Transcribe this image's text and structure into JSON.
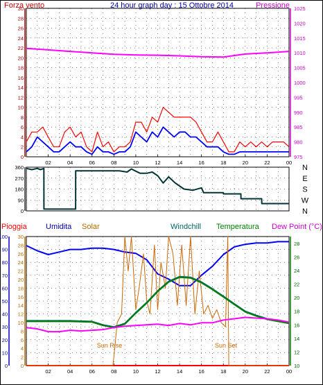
{
  "chart_data": [
    {
      "type": "line",
      "title": "24 hour graph day : 15 Ottobre 2014",
      "left_axis_label": "Forza vento",
      "right_axis_label": "Pressione",
      "x_ticks": [
        "02",
        "04",
        "06",
        "08",
        "10",
        "12",
        "14",
        "16",
        "18",
        "20",
        "22",
        "00"
      ],
      "x_range_hours": [
        0,
        24
      ],
      "left_ylim": [
        0,
        30
      ],
      "left_ticks": [
        0,
        2,
        4,
        6,
        8,
        10,
        12,
        14,
        16,
        18,
        20,
        22,
        24,
        26,
        28,
        30
      ],
      "right_ylim": [
        975,
        1025
      ],
      "right_ticks": [
        975,
        980,
        985,
        990,
        995,
        1000,
        1005,
        1010,
        1015,
        1020,
        1025
      ],
      "grid": true,
      "series": [
        {
          "color": "#ff0000",
          "axis": "left",
          "style": "gust",
          "x": [
            0,
            0.5,
            1,
            1.5,
            2,
            2.5,
            3,
            3.5,
            4,
            4.5,
            5,
            5.5,
            6,
            6.5,
            7,
            7.5,
            8,
            8.5,
            9,
            9.5,
            10,
            10.5,
            11,
            11.5,
            12,
            12.5,
            13,
            13.5,
            14,
            14.5,
            15,
            15.5,
            16,
            16.5,
            17,
            17.5,
            18,
            18.5,
            19,
            19.5,
            20,
            20.5,
            21,
            21.5,
            22,
            22.5,
            23,
            23.5,
            24
          ],
          "y": [
            3,
            5,
            5,
            6,
            4,
            2,
            2,
            5,
            6,
            4,
            5,
            2,
            1,
            5,
            2,
            3,
            1,
            2,
            2,
            3,
            7,
            7,
            5,
            8,
            7,
            10,
            9,
            8,
            8,
            8,
            8,
            7,
            5,
            3,
            3,
            5,
            3,
            1,
            1,
            3,
            2,
            3,
            2,
            3,
            2,
            3,
            3,
            3,
            2
          ]
        },
        {
          "color": "#0000ff",
          "axis": "left",
          "style": "average",
          "x": [
            0,
            0.5,
            1,
            1.5,
            2,
            2.5,
            3,
            3.5,
            4,
            4.5,
            5,
            5.5,
            6,
            6.5,
            7,
            7.5,
            8,
            8.5,
            9,
            9.5,
            10,
            10.5,
            11,
            11.5,
            12,
            12.5,
            13,
            13.5,
            14,
            14.5,
            15,
            15.5,
            16,
            16.5,
            17,
            17.5,
            18,
            18.5,
            19,
            19.5,
            20,
            20.5,
            21,
            21.5,
            22,
            22.5,
            23,
            23.5,
            24
          ],
          "y": [
            1,
            2,
            4,
            3,
            2,
            1,
            1,
            2,
            3,
            2,
            2,
            1,
            0.5,
            2,
            1,
            1,
            0.5,
            1,
            1,
            2,
            5,
            4,
            3,
            5,
            4,
            6,
            5,
            4,
            5,
            5,
            4,
            4,
            3,
            2,
            2,
            2,
            1,
            0.5,
            0.5,
            1,
            1,
            1,
            1,
            1,
            1,
            1,
            1,
            1,
            1
          ]
        },
        {
          "color": "#ff00ff",
          "axis": "right",
          "style": "pressure",
          "x": [
            0,
            2,
            4,
            6,
            8,
            10,
            12,
            14,
            16,
            18,
            20,
            22,
            24
          ],
          "y": [
            1011.5,
            1011,
            1010.5,
            1010,
            1009.5,
            1009.3,
            1009.2,
            1009,
            1008.7,
            1008.6,
            1009.6,
            1010,
            1010.5
          ]
        }
      ]
    },
    {
      "type": "line",
      "title": "",
      "right_axis_label": "N W S E N",
      "right_labels": [
        "N",
        "W",
        "S",
        "E",
        "N"
      ],
      "x_range_hours": [
        0,
        24
      ],
      "left_ylim": [
        0,
        360
      ],
      "left_ticks": [
        0,
        90,
        180,
        270,
        360
      ],
      "grid": true,
      "series": [
        {
          "color": "#003333",
          "axis": "left",
          "style": "direction",
          "x": [
            0,
            0.5,
            1,
            1.3,
            1.6,
            1.61,
            4.5,
            4.51,
            6,
            7.5,
            8.5,
            9.2,
            9.6,
            10.4,
            11,
            11.5,
            12,
            12.5,
            13,
            13.6,
            14.4,
            15.2,
            16,
            16.2,
            18,
            18.01,
            19.6,
            19.61,
            21.5,
            21.51,
            24
          ],
          "y": [
            350,
            340,
            350,
            340,
            350,
            15,
            15,
            330,
            330,
            330,
            330,
            320,
            345,
            310,
            310,
            320,
            290,
            230,
            280,
            230,
            180,
            170,
            190,
            150,
            150,
            140,
            140,
            100,
            100,
            60,
            60
          ]
        }
      ]
    },
    {
      "type": "line",
      "title": "",
      "legend": [
        "Pioggia",
        "Umidita",
        "Solar",
        "Windchill",
        "Temperatura",
        "Dew Point (°C)"
      ],
      "x_ticks": [
        "02",
        "04",
        "06",
        "08",
        "10",
        "12",
        "14",
        "16",
        "18",
        "20",
        "22",
        "00"
      ],
      "x_range_hours": [
        0,
        24
      ],
      "annotations": [
        "Sun Rise",
        "Sun Set"
      ],
      "axis1_ylim": [
        0,
        100
      ],
      "axis1_ticks": [
        0,
        10,
        20,
        30,
        40,
        50,
        60,
        70,
        80,
        90,
        100
      ],
      "axis2_ylim": [
        0,
        30
      ],
      "axis2_ticks": [
        0,
        2,
        4,
        6,
        8,
        10,
        12,
        14,
        16,
        18,
        20,
        22,
        24,
        26,
        28,
        30
      ],
      "axis3_ylim": [
        10,
        29
      ],
      "axis3_ticks": [
        10,
        12,
        14,
        16,
        18,
        20,
        22,
        24,
        26,
        28
      ],
      "grid": true,
      "series": [
        {
          "color": "#ff0000",
          "axis": "axis1",
          "style": "rain",
          "x": [
            0,
            24
          ],
          "y": [
            0,
            0
          ]
        },
        {
          "color": "#0000ff",
          "axis": "axis1",
          "style": "humidity",
          "x": [
            0,
            1,
            2,
            3,
            4,
            5,
            6,
            7,
            8,
            9,
            10,
            11,
            12,
            13,
            14,
            15,
            16,
            17,
            18,
            19,
            20,
            21,
            22,
            23,
            24
          ],
          "y": [
            93,
            89,
            86,
            88,
            90,
            90,
            91,
            91,
            90,
            88,
            87,
            82,
            71,
            67,
            62,
            62,
            70,
            77,
            86,
            92,
            94,
            95,
            95,
            96,
            96
          ]
        },
        {
          "color": "#cc6600",
          "axis": "axis2",
          "style": "solar",
          "x": [
            0,
            7.9,
            8.0,
            8.3,
            8.7,
            9.0,
            9.3,
            9.6,
            10.0,
            10.3,
            10.7,
            11.0,
            11.3,
            11.7,
            12.0,
            12.3,
            12.7,
            13.0,
            13.4,
            13.8,
            14.2,
            14.6,
            15.0,
            15.4,
            15.8,
            16.2,
            16.6,
            17.0,
            17.4,
            17.8,
            18.2,
            18.4,
            18.5,
            24
          ],
          "y": [
            0,
            0,
            2,
            10,
            12,
            30,
            22,
            30,
            13,
            18,
            26,
            15,
            12,
            28,
            13,
            24,
            18,
            30,
            26,
            14,
            28,
            14,
            30,
            12,
            22,
            12,
            14,
            11,
            13,
            10,
            9,
            30,
            0,
            0
          ]
        },
        {
          "color": "#006666",
          "axis": "axis3",
          "style": "windchill",
          "x": [
            0,
            2,
            4,
            6,
            7,
            8,
            9,
            10,
            11,
            12,
            13,
            14,
            15,
            16,
            17,
            18,
            19,
            20,
            21,
            22,
            23,
            24
          ],
          "y": [
            16.6,
            16.6,
            16.6,
            16.5,
            16.0,
            15.7,
            16.2,
            17.8,
            19.3,
            21.0,
            22.4,
            23.1,
            23.0,
            22.3,
            21.3,
            20.2,
            19.1,
            18.0,
            17.4,
            16.9,
            16.6,
            16.3
          ]
        },
        {
          "color": "#008000",
          "axis": "axis3",
          "style": "temperature",
          "x": [
            0,
            2,
            4,
            6,
            7,
            8,
            9,
            10,
            11,
            12,
            13,
            14,
            15,
            16,
            17,
            18,
            19,
            20,
            21,
            22,
            23,
            24
          ],
          "y": [
            16.5,
            16.5,
            16.5,
            16.4,
            15.9,
            15.6,
            16.1,
            17.7,
            19.2,
            20.9,
            22.3,
            23.0,
            22.9,
            22.2,
            21.2,
            20.1,
            19.0,
            17.9,
            17.3,
            16.8,
            16.5,
            16.2
          ]
        },
        {
          "color": "#ff00ff",
          "axis": "axis3",
          "style": "dewpoint",
          "x": [
            0,
            1,
            2,
            3,
            4,
            5,
            6,
            7,
            8,
            9,
            10,
            11,
            12,
            13,
            14,
            15,
            16,
            17,
            18,
            19,
            20,
            21,
            22,
            23,
            24
          ],
          "y": [
            15.6,
            15.4,
            15.0,
            15.0,
            15.2,
            15.1,
            15.2,
            15.3,
            15.6,
            15.8,
            15.9,
            16.0,
            16.1,
            15.9,
            16.2,
            16.0,
            16.3,
            16.3,
            16.7,
            16.9,
            17.1,
            17.0,
            16.9,
            16.7,
            16.4
          ]
        }
      ]
    }
  ],
  "colors": {
    "frame": "#000000",
    "grid": "#000000",
    "wind_axis": "#aa0000",
    "pressure_axis": "#cc00cc",
    "direction_line": "#003333",
    "humidity_axis": "#0000cc",
    "solar_axis": "#b36b00",
    "temperature_axis": "#008000"
  },
  "icons": {
    "solar_legend_label": "Solar",
    "sunrise_marker": "vertical-line",
    "sunset_marker": "vertical-line"
  }
}
